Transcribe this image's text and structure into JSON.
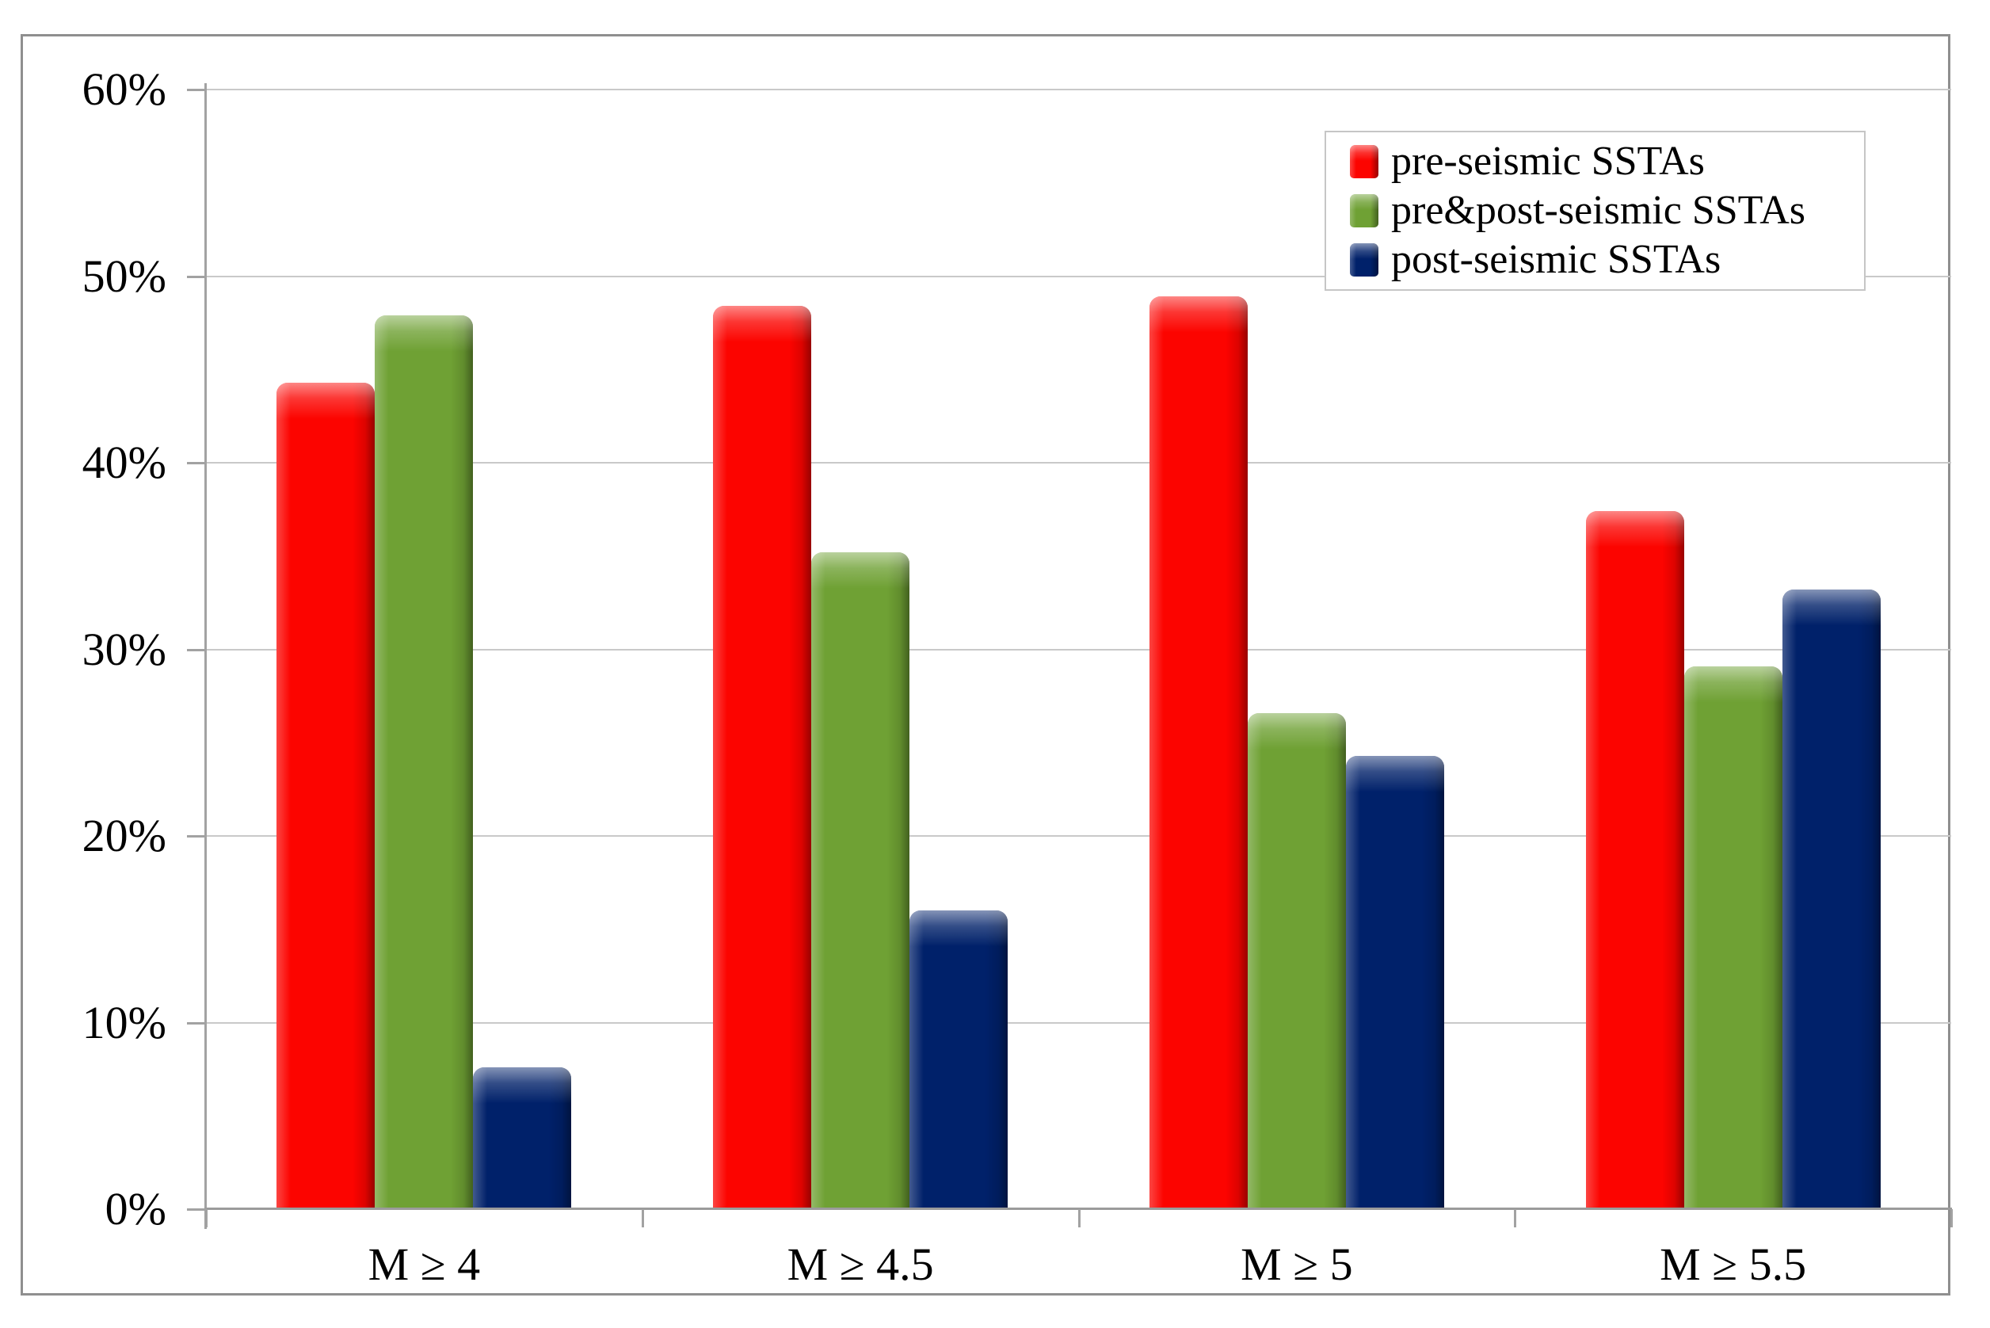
{
  "chart_data": {
    "type": "bar",
    "layout": "clustered-vertical",
    "categories": [
      "M ≥ 4",
      "M ≥ 4.5",
      "M ≥ 5",
      "M ≥ 5.5"
    ],
    "series": [
      {
        "name": "pre-seismic SSTAs",
        "color": "#fc0400",
        "values": [
          44.3,
          48.4,
          48.9,
          37.4
        ]
      },
      {
        "name": "pre&post-seismic SSTAs",
        "color": "#6fa134",
        "values": [
          47.9,
          35.2,
          26.6,
          29.1
        ]
      },
      {
        "name": "post-seismic SSTAs",
        "color": "#00216a",
        "values": [
          7.6,
          16.0,
          24.3,
          33.2
        ]
      }
    ],
    "title": "",
    "xlabel": "",
    "ylabel": "",
    "ylim": [
      0,
      60
    ],
    "ytick_step": 10,
    "ytick_labels": [
      "0%",
      "10%",
      "20%",
      "30%",
      "40%",
      "50%",
      "60%"
    ],
    "grid": "horizontal",
    "legend_position": "top-right",
    "colors": {
      "gridline": "#c9c9c9",
      "axis": "#a2a2a2",
      "frame_border": "#8f8f8f",
      "legend_border": "#c6c6c6",
      "text": "#000000"
    }
  }
}
